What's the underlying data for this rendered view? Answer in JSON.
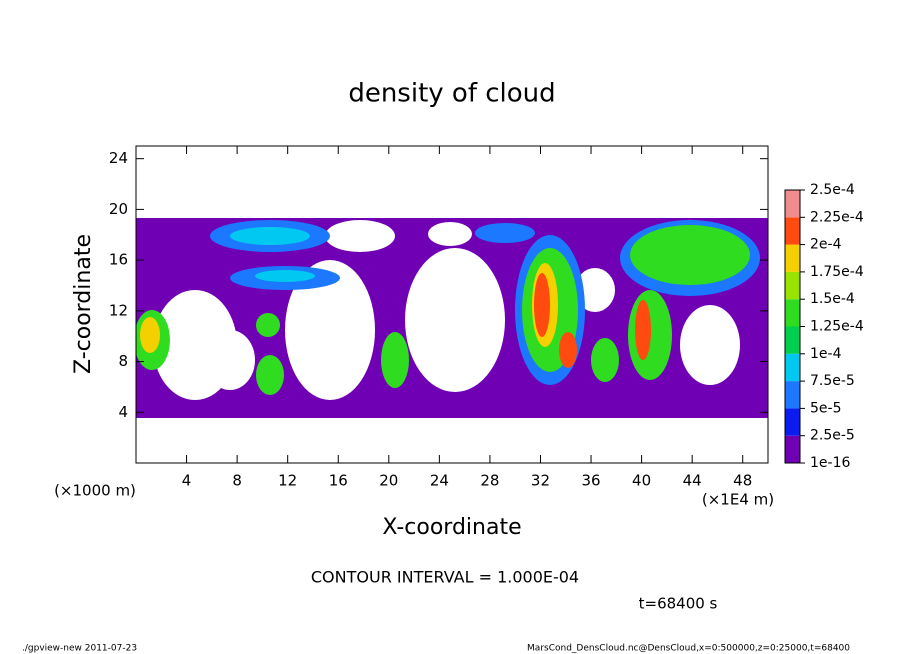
{
  "chart_data": {
    "type": "contour",
    "title": "density of cloud",
    "xlabel": "X-coordinate",
    "ylabel": "Z-coordinate",
    "x_unit": "(×1E4 m)",
    "y_unit": "(×1000 m)",
    "xlim": [
      0,
      50
    ],
    "xticks": [
      4,
      8,
      12,
      16,
      20,
      24,
      28,
      32,
      36,
      40,
      44,
      48
    ],
    "ylim": [
      0,
      25
    ],
    "yticks": [
      4,
      8,
      12,
      16,
      20,
      24
    ],
    "colorbar": {
      "levels": [
        1e-16,
        {
          "value": 2.5e-05,
          "label": "2.5e-5"
        },
        {
          "value": 5e-05,
          "label": "5e-5"
        },
        {
          "value": 7.5e-05,
          "label": "7.5e-5"
        },
        {
          "value": 0.0001,
          "label": "1e-4"
        },
        {
          "value": 0.000125,
          "label": "1.25e-4"
        },
        {
          "value": 0.00015,
          "label": "1.5e-4"
        },
        {
          "value": 0.000175,
          "label": "1.75e-4"
        },
        {
          "value": 0.0002,
          "label": "2e-4"
        },
        {
          "value": 0.000225,
          "label": "2.25e-4"
        },
        {
          "value": 0.00025,
          "label": "2.5e-4"
        }
      ],
      "colors": [
        "#7000b4",
        "#0a1cf0",
        "#1c78ff",
        "#00c8f0",
        "#00d050",
        "#30dc20",
        "#98e400",
        "#f4d000",
        "#ff4a10",
        "#f08c8c"
      ]
    },
    "contour_note": "CONTOUR INTERVAL = 1.000E-04",
    "time_label": "t=68400 s",
    "footer_left": "./gpview-new   2011-07-23",
    "footer_right": "MarsCond_DensCloud.nc@DensCloud,x=0:500000,z=0:25000,t=68400"
  }
}
